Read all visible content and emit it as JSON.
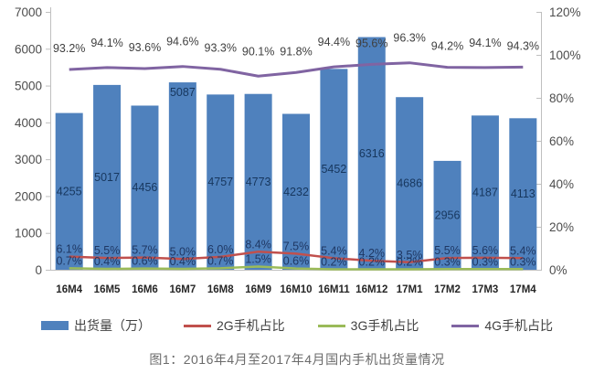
{
  "figure": {
    "caption": "图1：2016年4月至2017年4月国内手机出货量情况"
  },
  "chart_data": {
    "type": "combo-bar-line",
    "title": "",
    "categories": [
      "16M4",
      "16M5",
      "16M6",
      "16M7",
      "16M8",
      "16M9",
      "16M10",
      "16M11",
      "16M12",
      "17M1",
      "17M2",
      "17M3",
      "17M4"
    ],
    "series": [
      {
        "name": "出货量（万）",
        "type": "bar",
        "axis": "left",
        "color": "#4F81BD",
        "label_color": "#17375E",
        "values": [
          4255,
          5017,
          4456,
          5087,
          4757,
          4773,
          4232,
          5452,
          6316,
          4686,
          2956,
          4187,
          4113
        ],
        "label_placement": [
          "center",
          "center",
          "center",
          "inside-end",
          "center",
          "center",
          "center",
          "center",
          "center",
          "center",
          "center",
          "center",
          "center"
        ]
      },
      {
        "name": "2G手机占比",
        "type": "line",
        "axis": "right",
        "color": "#C0504D",
        "label_color": "#1F3864",
        "values": [
          6.1,
          5.5,
          5.7,
          5.0,
          6.0,
          8.4,
          7.5,
          5.4,
          4.2,
          3.5,
          5.5,
          5.6,
          5.4
        ]
      },
      {
        "name": "3G手机占比",
        "type": "line",
        "axis": "right",
        "color": "#9BBB59",
        "label_color": "#1F3864",
        "values": [
          0.7,
          0.4,
          0.6,
          0.4,
          0.7,
          1.5,
          0.6,
          0.2,
          0.2,
          0.2,
          0.3,
          0.3,
          0.3
        ]
      },
      {
        "name": "4G手机占比",
        "type": "line",
        "axis": "right",
        "color": "#8064A2",
        "label_color": "#3F3F3F",
        "values": [
          93.2,
          94.1,
          93.6,
          94.6,
          93.3,
          90.1,
          91.8,
          94.4,
          95.6,
          96.3,
          94.2,
          94.1,
          94.3
        ]
      }
    ],
    "left_axis": {
      "min": 0,
      "max": 7000,
      "ticks": [
        "7000",
        "6000",
        "5000",
        "4000",
        "3000",
        "2000",
        "1000",
        "0"
      ]
    },
    "right_axis": {
      "min": 0,
      "max": 120,
      "ticks": [
        "120%",
        "100%",
        "80%",
        "60%",
        "40%",
        "20%",
        "0%"
      ]
    },
    "grid": false,
    "legend_position": "bottom"
  },
  "colors": {
    "axis_line": "#BFBFBF",
    "axis_text": "#4D4D4D",
    "x_label_text": "#262626"
  }
}
